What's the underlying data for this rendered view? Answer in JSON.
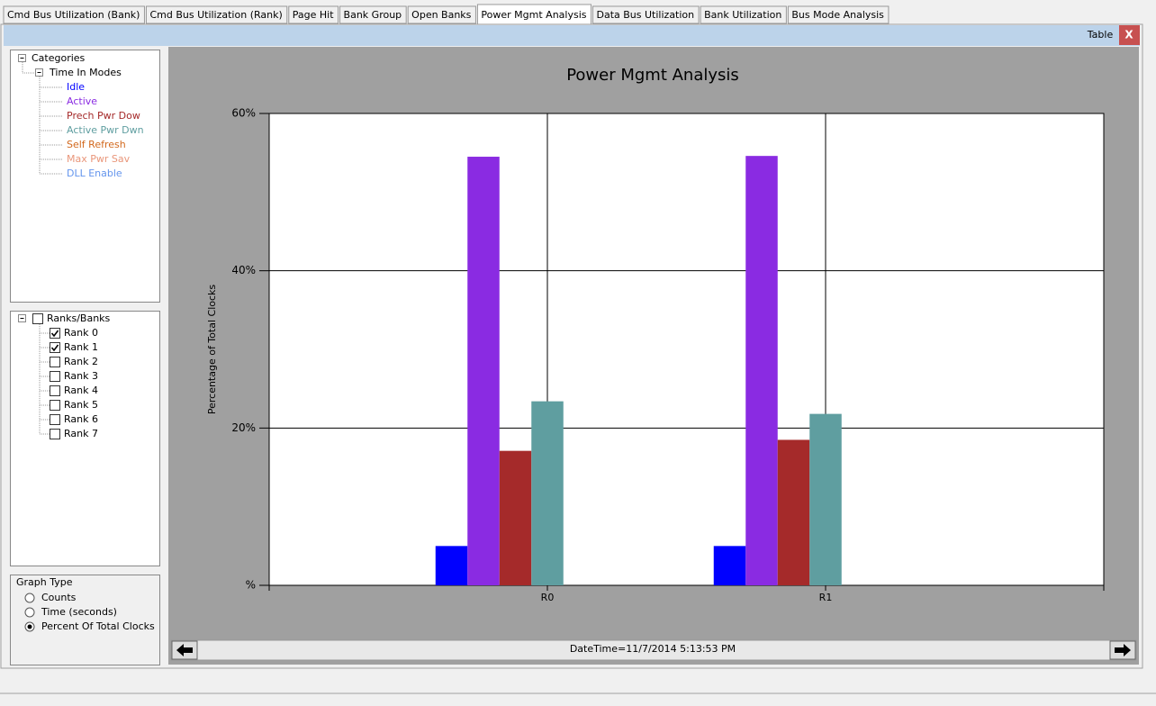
{
  "tabs": [
    {
      "label": "Cmd Bus Utilization (Bank)",
      "selected": false
    },
    {
      "label": "Cmd Bus Utilization (Rank)",
      "selected": false
    },
    {
      "label": "Page Hit",
      "selected": false
    },
    {
      "label": "Bank Group",
      "selected": false
    },
    {
      "label": "Open Banks",
      "selected": false
    },
    {
      "label": "Power Mgmt Analysis",
      "selected": true
    },
    {
      "label": "Data Bus Utilization",
      "selected": false
    },
    {
      "label": "Bank Utilization",
      "selected": false
    },
    {
      "label": "Bus Mode Analysis",
      "selected": false
    }
  ],
  "toolbar": {
    "table": "Table",
    "close": "X"
  },
  "categories_tree": {
    "root": "Categories",
    "group": "Time In Modes"
  },
  "ranks_tree": {
    "root": "Ranks/Banks",
    "root_checked": false,
    "items": [
      {
        "label": "Rank 0",
        "checked": true
      },
      {
        "label": "Rank 1",
        "checked": true
      },
      {
        "label": "Rank 2",
        "checked": false
      },
      {
        "label": "Rank 3",
        "checked": false
      },
      {
        "label": "Rank 4",
        "checked": false
      },
      {
        "label": "Rank 5",
        "checked": false
      },
      {
        "label": "Rank 6",
        "checked": false
      },
      {
        "label": "Rank 7",
        "checked": false
      }
    ]
  },
  "graph_type": {
    "title": "Graph Type",
    "options": [
      {
        "label": "Counts",
        "selected": false
      },
      {
        "label": "Time (seconds)",
        "selected": false
      },
      {
        "label": "Percent Of Total Clocks",
        "selected": true
      }
    ]
  },
  "chart_data": {
    "type": "bar",
    "title": "Power Mgmt Analysis",
    "y_label": "Percentage of Total Clocks",
    "categories": [
      "R0",
      "R1"
    ],
    "series": [
      {
        "name": "Idle",
        "color": "#0000ff",
        "values": [
          5.0,
          5.0
        ]
      },
      {
        "name": "Active",
        "color": "#8a2be2",
        "values": [
          54.5,
          54.6
        ]
      },
      {
        "name": "Prech Pwr Dow",
        "color": "#a52a2a",
        "values": [
          17.1,
          18.5
        ]
      },
      {
        "name": "Active Pwr Dwn",
        "color": "#5f9ea0",
        "values": [
          23.4,
          21.8
        ]
      },
      {
        "name": "Self Refresh",
        "color": "#d2691e",
        "values": [
          0,
          0
        ]
      },
      {
        "name": "Max Pwr Sav",
        "color": "#e9967a",
        "values": [
          0,
          0
        ]
      },
      {
        "name": "DLL Enable",
        "color": "#6495ed",
        "values": [
          0,
          0
        ]
      }
    ],
    "ylim": [
      0,
      60
    ],
    "yticks": [
      {
        "value": 0,
        "label": "%"
      },
      {
        "value": 20,
        "label": "20%"
      },
      {
        "value": 40,
        "label": "40%"
      },
      {
        "value": 60,
        "label": "60%"
      }
    ],
    "grid": true
  },
  "footer": {
    "datetime": "DateTime=11/7/2014 5:13:53 PM"
  }
}
